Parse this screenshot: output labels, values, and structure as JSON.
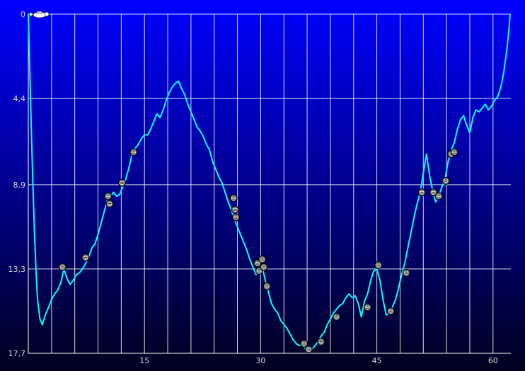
{
  "colors": {
    "background_top": "#0000ff",
    "background_bottom": "#00001e",
    "grid": "#ffffff",
    "line": "#00ffff",
    "tick_text": "#d8d8d8"
  },
  "icons": {
    "start_marker": "diver-icon",
    "event_marker": "photo-badge-icon"
  },
  "chart_data": {
    "type": "line",
    "title": "",
    "xlabel": "",
    "ylabel": "",
    "xlim": [
      0,
      62.3
    ],
    "ylim": [
      17.7,
      0
    ],
    "y_inverted": true,
    "grid": true,
    "x_ticks": [
      {
        "value": 15,
        "label": "15"
      },
      {
        "value": 30,
        "label": "30"
      },
      {
        "value": 45,
        "label": "45"
      },
      {
        "value": 60,
        "label": "60"
      }
    ],
    "y_ticks": [
      {
        "value": 0,
        "label": "0"
      },
      {
        "value": 4.4,
        "label": "4,4"
      },
      {
        "value": 8.9,
        "label": "8,9"
      },
      {
        "value": 13.3,
        "label": "13,3"
      },
      {
        "value": 17.7,
        "label": "17,7"
      }
    ],
    "series": [
      {
        "points": [
          [
            0.0,
            0.0
          ],
          [
            0.2,
            3.1
          ],
          [
            0.4,
            6.2
          ],
          [
            0.6,
            9.0
          ],
          [
            0.8,
            11.5
          ],
          [
            1.0,
            13.4
          ],
          [
            1.2,
            14.9
          ],
          [
            1.5,
            15.9
          ],
          [
            1.8,
            16.2
          ],
          [
            2.2,
            15.7
          ],
          [
            2.6,
            15.3
          ],
          [
            3.0,
            14.9
          ],
          [
            3.4,
            14.6
          ],
          [
            3.8,
            14.4
          ],
          [
            4.2,
            14.0
          ],
          [
            4.6,
            13.3
          ],
          [
            5.0,
            13.8
          ],
          [
            5.4,
            14.1
          ],
          [
            5.8,
            13.9
          ],
          [
            6.2,
            13.6
          ],
          [
            6.6,
            13.5
          ],
          [
            7.0,
            13.3
          ],
          [
            7.4,
            13.0
          ],
          [
            7.8,
            12.7
          ],
          [
            8.2,
            12.2
          ],
          [
            8.6,
            12.0
          ],
          [
            9.0,
            11.5
          ],
          [
            9.4,
            10.9
          ],
          [
            9.8,
            10.3
          ],
          [
            10.2,
            9.7
          ],
          [
            10.6,
            9.5
          ],
          [
            11.0,
            9.3
          ],
          [
            11.4,
            9.5
          ],
          [
            11.8,
            9.4
          ],
          [
            12.2,
            9.0
          ],
          [
            12.6,
            8.6
          ],
          [
            13.0,
            8.0
          ],
          [
            13.4,
            7.3
          ],
          [
            13.8,
            7.0
          ],
          [
            14.2,
            6.8
          ],
          [
            14.6,
            6.5
          ],
          [
            15.0,
            6.3
          ],
          [
            15.4,
            6.3
          ],
          [
            15.8,
            6.0
          ],
          [
            16.2,
            5.6
          ],
          [
            16.6,
            5.2
          ],
          [
            17.0,
            5.4
          ],
          [
            17.4,
            5.0
          ],
          [
            17.8,
            4.5
          ],
          [
            18.2,
            4.1
          ],
          [
            18.6,
            3.8
          ],
          [
            19.0,
            3.6
          ],
          [
            19.4,
            3.5
          ],
          [
            19.8,
            3.9
          ],
          [
            20.2,
            4.2
          ],
          [
            20.6,
            4.7
          ],
          [
            21.0,
            5.1
          ],
          [
            21.4,
            5.5
          ],
          [
            21.8,
            5.9
          ],
          [
            22.2,
            6.1
          ],
          [
            22.6,
            6.4
          ],
          [
            23.0,
            6.8
          ],
          [
            23.4,
            7.1
          ],
          [
            23.8,
            7.7
          ],
          [
            24.2,
            8.1
          ],
          [
            24.6,
            8.5
          ],
          [
            25.0,
            8.8
          ],
          [
            25.4,
            9.3
          ],
          [
            25.8,
            9.8
          ],
          [
            26.2,
            10.2
          ],
          [
            26.6,
            10.7
          ],
          [
            27.0,
            11.1
          ],
          [
            27.4,
            11.5
          ],
          [
            27.8,
            11.9
          ],
          [
            28.2,
            12.3
          ],
          [
            28.6,
            12.8
          ],
          [
            29.0,
            13.2
          ],
          [
            29.4,
            13.6
          ],
          [
            29.8,
            13.0
          ],
          [
            30.2,
            13.2
          ],
          [
            30.6,
            13.9
          ],
          [
            31.0,
            14.5
          ],
          [
            31.4,
            15.1
          ],
          [
            31.8,
            15.4
          ],
          [
            32.2,
            15.6
          ],
          [
            32.6,
            16.0
          ],
          [
            33.0,
            16.2
          ],
          [
            33.4,
            16.4
          ],
          [
            33.8,
            16.7
          ],
          [
            34.2,
            17.0
          ],
          [
            34.6,
            17.2
          ],
          [
            35.0,
            17.3
          ],
          [
            35.4,
            17.2
          ],
          [
            35.8,
            17.5
          ],
          [
            36.2,
            17.6
          ],
          [
            36.6,
            17.5
          ],
          [
            37.0,
            17.3
          ],
          [
            37.4,
            17.1
          ],
          [
            37.8,
            16.8
          ],
          [
            38.2,
            16.6
          ],
          [
            38.6,
            16.2
          ],
          [
            39.0,
            15.9
          ],
          [
            39.4,
            15.6
          ],
          [
            39.8,
            15.4
          ],
          [
            40.2,
            15.2
          ],
          [
            40.6,
            15.1
          ],
          [
            41.0,
            14.8
          ],
          [
            41.4,
            14.6
          ],
          [
            41.8,
            14.8
          ],
          [
            42.2,
            14.7
          ],
          [
            42.6,
            15.1
          ],
          [
            43.0,
            15.8
          ],
          [
            43.4,
            15.0
          ],
          [
            43.8,
            14.6
          ],
          [
            44.2,
            13.9
          ],
          [
            44.6,
            13.4
          ],
          [
            45.0,
            13.3
          ],
          [
            45.4,
            13.9
          ],
          [
            45.8,
            14.9
          ],
          [
            46.2,
            15.7
          ],
          [
            46.6,
            15.6
          ],
          [
            47.0,
            15.3
          ],
          [
            47.4,
            14.9
          ],
          [
            47.8,
            14.3
          ],
          [
            48.2,
            13.6
          ],
          [
            48.6,
            13.0
          ],
          [
            49.0,
            12.2
          ],
          [
            49.4,
            11.4
          ],
          [
            49.8,
            10.6
          ],
          [
            50.2,
            9.9
          ],
          [
            50.6,
            9.3
          ],
          [
            51.0,
            8.3
          ],
          [
            51.4,
            7.3
          ],
          [
            51.8,
            8.4
          ],
          [
            52.2,
            9.2
          ],
          [
            52.6,
            9.8
          ],
          [
            53.0,
            9.5
          ],
          [
            53.4,
            9.0
          ],
          [
            53.8,
            8.6
          ],
          [
            54.2,
            7.7
          ],
          [
            54.6,
            7.1
          ],
          [
            55.0,
            6.7
          ],
          [
            55.4,
            6.0
          ],
          [
            55.8,
            5.5
          ],
          [
            56.2,
            5.3
          ],
          [
            56.6,
            5.8
          ],
          [
            57.0,
            6.2
          ],
          [
            57.4,
            5.4
          ],
          [
            57.8,
            5.0
          ],
          [
            58.2,
            5.1
          ],
          [
            58.6,
            4.9
          ],
          [
            59.0,
            4.7
          ],
          [
            59.4,
            5.0
          ],
          [
            59.8,
            4.8
          ],
          [
            60.2,
            4.5
          ],
          [
            60.6,
            4.3
          ],
          [
            61.0,
            3.8
          ],
          [
            61.4,
            3.0
          ],
          [
            61.8,
            1.8
          ],
          [
            62.1,
            0.6
          ],
          [
            62.2,
            0.0
          ]
        ]
      }
    ],
    "markers": [
      {
        "x": 4.4,
        "y": 13.2
      },
      {
        "x": 7.4,
        "y": 12.7
      },
      {
        "x": 10.3,
        "y": 9.5
      },
      {
        "x": 10.5,
        "y": 9.9
      },
      {
        "x": 12.1,
        "y": 8.8
      },
      {
        "x": 13.6,
        "y": 7.2
      },
      {
        "x": 26.5,
        "y": 9.6
      },
      {
        "x": 26.7,
        "y": 10.2
      },
      {
        "x": 26.8,
        "y": 10.6
      },
      {
        "x": 29.6,
        "y": 13.0
      },
      {
        "x": 29.8,
        "y": 13.4
      },
      {
        "x": 30.2,
        "y": 12.8
      },
      {
        "x": 30.4,
        "y": 13.2
      },
      {
        "x": 30.8,
        "y": 14.2
      },
      {
        "x": 35.6,
        "y": 17.2
      },
      {
        "x": 36.2,
        "y": 17.5
      },
      {
        "x": 37.8,
        "y": 17.1
      },
      {
        "x": 39.8,
        "y": 15.8
      },
      {
        "x": 43.8,
        "y": 15.3
      },
      {
        "x": 45.2,
        "y": 13.1
      },
      {
        "x": 46.8,
        "y": 15.5
      },
      {
        "x": 48.8,
        "y": 13.5
      },
      {
        "x": 50.8,
        "y": 9.3
      },
      {
        "x": 52.3,
        "y": 9.3
      },
      {
        "x": 53.0,
        "y": 9.5
      },
      {
        "x": 53.9,
        "y": 8.7
      },
      {
        "x": 54.6,
        "y": 7.3
      },
      {
        "x": 55.0,
        "y": 7.2
      }
    ]
  }
}
